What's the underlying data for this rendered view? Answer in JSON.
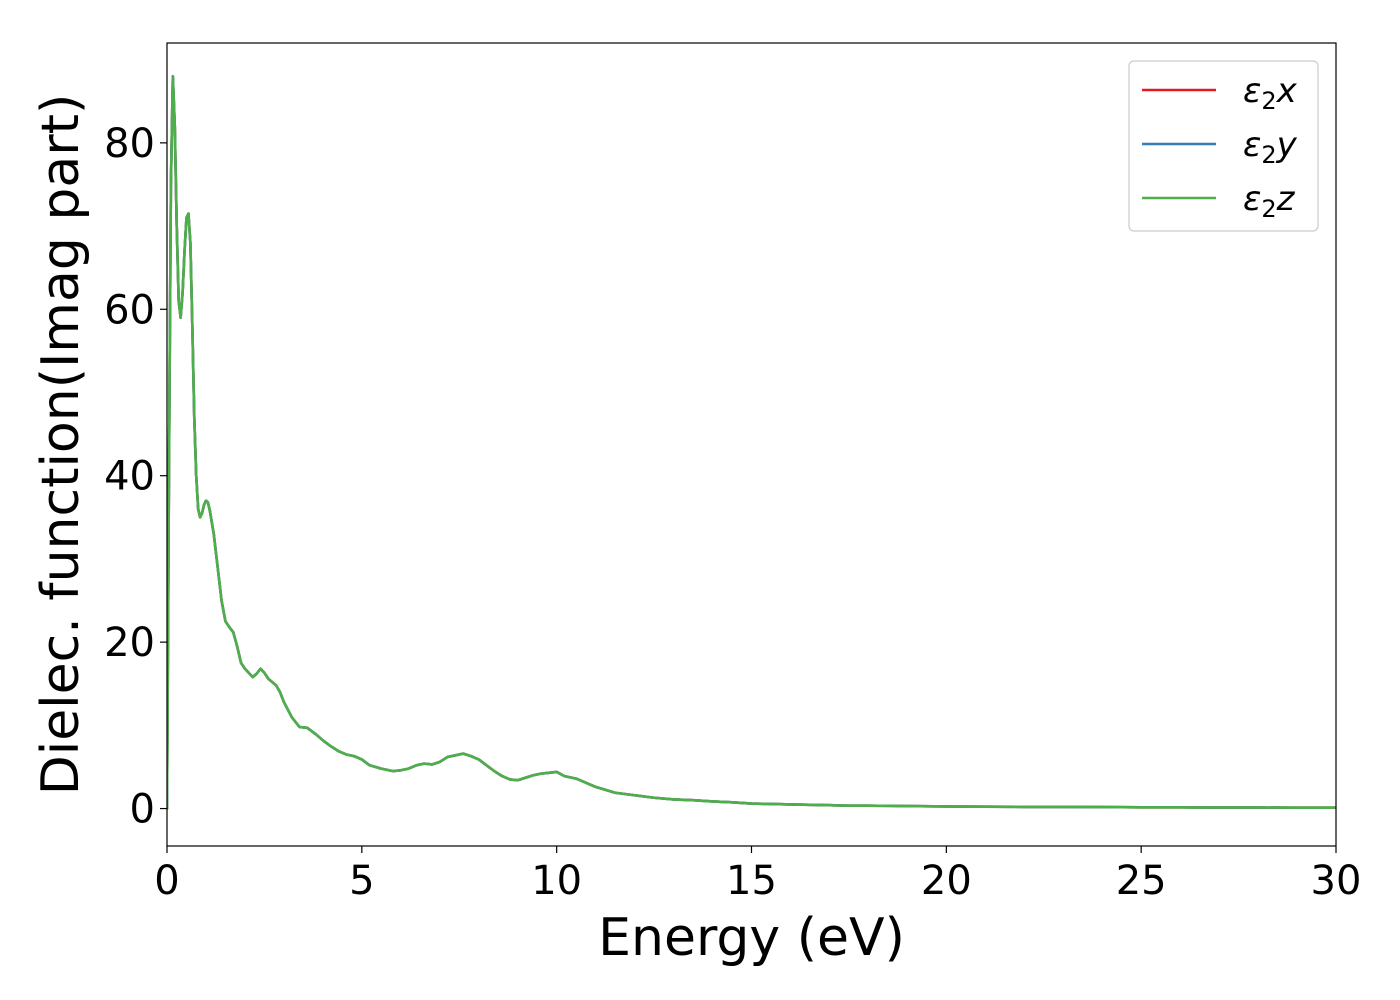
{
  "chart_data": {
    "type": "line",
    "title": "",
    "xlabel": "Energy (eV)",
    "ylabel": "Dielec. function(Imag part)",
    "xlim": [
      0,
      30
    ],
    "ylim": [
      -4.5,
      92
    ],
    "xticks": [
      0,
      5,
      10,
      15,
      20,
      25,
      30
    ],
    "xtick_labels": [
      "0",
      "5",
      "10",
      "15",
      "20",
      "25",
      "30"
    ],
    "yticks": [
      0,
      20,
      40,
      60,
      80
    ],
    "ytick_labels": [
      "0",
      "20",
      "40",
      "60",
      "80"
    ],
    "grid": false,
    "legend": {
      "position": "top-right"
    },
    "x": [
      0,
      0.05,
      0.1,
      0.15,
      0.2,
      0.25,
      0.3,
      0.35,
      0.4,
      0.45,
      0.5,
      0.55,
      0.6,
      0.65,
      0.7,
      0.75,
      0.8,
      0.85,
      0.9,
      0.95,
      1.0,
      1.05,
      1.1,
      1.2,
      1.3,
      1.4,
      1.5,
      1.6,
      1.7,
      1.8,
      1.9,
      2.0,
      2.1,
      2.2,
      2.3,
      2.4,
      2.5,
      2.6,
      2.7,
      2.8,
      2.9,
      3.0,
      3.2,
      3.4,
      3.6,
      3.8,
      4.0,
      4.2,
      4.4,
      4.6,
      4.8,
      5.0,
      5.2,
      5.5,
      5.8,
      6.0,
      6.2,
      6.4,
      6.6,
      6.8,
      7.0,
      7.2,
      7.4,
      7.6,
      7.8,
      8.0,
      8.2,
      8.4,
      8.6,
      8.8,
      9.0,
      9.2,
      9.4,
      9.6,
      9.8,
      10.0,
      10.2,
      10.5,
      10.8,
      11.0,
      11.5,
      12.0,
      12.5,
      13.0,
      13.5,
      14.0,
      14.5,
      15.0,
      15.5,
      16.0,
      16.5,
      17.0,
      17.5,
      18.0,
      19.0,
      20.0,
      21.0,
      22.0,
      23.0,
      24.0,
      25.0,
      26.0,
      27.0,
      28.0,
      29.0,
      30.0
    ],
    "series": [
      {
        "name": "ε2x",
        "legend_base": "ε",
        "legend_sub": "2",
        "legend_suffix": "x",
        "color": "#e41a1c",
        "values": [
          0,
          40,
          75,
          88,
          82,
          70,
          61,
          59,
          62,
          67,
          71,
          71.5,
          68,
          58,
          47,
          40,
          36,
          35,
          35.5,
          36.5,
          37,
          36.8,
          35.8,
          33,
          29,
          25,
          22.5,
          21.8,
          21.2,
          19.5,
          17.5,
          16.8,
          16.3,
          15.8,
          16.2,
          16.8,
          16.3,
          15.6,
          15.2,
          14.8,
          14,
          12.8,
          11,
          9.8,
          9.7,
          9,
          8.2,
          7.5,
          6.9,
          6.5,
          6.3,
          5.9,
          5.2,
          4.8,
          4.5,
          4.6,
          4.8,
          5.2,
          5.4,
          5.3,
          5.6,
          6.2,
          6.4,
          6.6,
          6.3,
          5.9,
          5.2,
          4.5,
          3.9,
          3.5,
          3.4,
          3.7,
          4.0,
          4.2,
          4.3,
          4.4,
          3.9,
          3.6,
          3.0,
          2.6,
          1.9,
          1.6,
          1.3,
          1.1,
          1.0,
          0.85,
          0.75,
          0.6,
          0.55,
          0.5,
          0.45,
          0.4,
          0.35,
          0.35,
          0.3,
          0.25,
          0.22,
          0.2,
          0.2,
          0.18,
          0.15,
          0.15,
          0.12,
          0.12,
          0.1,
          0.1
        ]
      },
      {
        "name": "ε2y",
        "legend_base": "ε",
        "legend_sub": "2",
        "legend_suffix": "y",
        "color": "#377eb8",
        "values": [
          0,
          40,
          75,
          88,
          82,
          70,
          61,
          59,
          62,
          67,
          71,
          71.5,
          68,
          58,
          47,
          40,
          36,
          35,
          35.5,
          36.5,
          37,
          36.8,
          35.8,
          33,
          29,
          25,
          22.5,
          21.8,
          21.2,
          19.5,
          17.5,
          16.8,
          16.3,
          15.8,
          16.2,
          16.8,
          16.3,
          15.6,
          15.2,
          14.8,
          14,
          12.8,
          11,
          9.8,
          9.7,
          9,
          8.2,
          7.5,
          6.9,
          6.5,
          6.3,
          5.9,
          5.2,
          4.8,
          4.5,
          4.6,
          4.8,
          5.2,
          5.4,
          5.3,
          5.6,
          6.2,
          6.4,
          6.6,
          6.3,
          5.9,
          5.2,
          4.5,
          3.9,
          3.5,
          3.4,
          3.7,
          4.0,
          4.2,
          4.3,
          4.4,
          3.9,
          3.6,
          3.0,
          2.6,
          1.9,
          1.6,
          1.3,
          1.1,
          1.0,
          0.85,
          0.75,
          0.6,
          0.55,
          0.5,
          0.45,
          0.4,
          0.35,
          0.35,
          0.3,
          0.25,
          0.22,
          0.2,
          0.2,
          0.18,
          0.15,
          0.15,
          0.12,
          0.12,
          0.1,
          0.1
        ]
      },
      {
        "name": "ε2z",
        "legend_base": "ε",
        "legend_sub": "2",
        "legend_suffix": "z",
        "color": "#4daf4a",
        "values": [
          0,
          40,
          75,
          88,
          82,
          70,
          61,
          59,
          62,
          67,
          71,
          71.5,
          68,
          58,
          47,
          40,
          36,
          35,
          35.5,
          36.5,
          37,
          36.8,
          35.8,
          33,
          29,
          25,
          22.5,
          21.8,
          21.2,
          19.5,
          17.5,
          16.8,
          16.3,
          15.8,
          16.2,
          16.8,
          16.3,
          15.6,
          15.2,
          14.8,
          14,
          12.8,
          11,
          9.8,
          9.7,
          9,
          8.2,
          7.5,
          6.9,
          6.5,
          6.3,
          5.9,
          5.2,
          4.8,
          4.5,
          4.6,
          4.8,
          5.2,
          5.4,
          5.3,
          5.6,
          6.2,
          6.4,
          6.6,
          6.3,
          5.9,
          5.2,
          4.5,
          3.9,
          3.5,
          3.4,
          3.7,
          4.0,
          4.2,
          4.3,
          4.4,
          3.9,
          3.6,
          3.0,
          2.6,
          1.9,
          1.6,
          1.3,
          1.1,
          1.0,
          0.85,
          0.75,
          0.6,
          0.55,
          0.5,
          0.45,
          0.4,
          0.35,
          0.35,
          0.3,
          0.25,
          0.22,
          0.2,
          0.2,
          0.18,
          0.15,
          0.15,
          0.12,
          0.12,
          0.1,
          0.1
        ]
      }
    ]
  }
}
